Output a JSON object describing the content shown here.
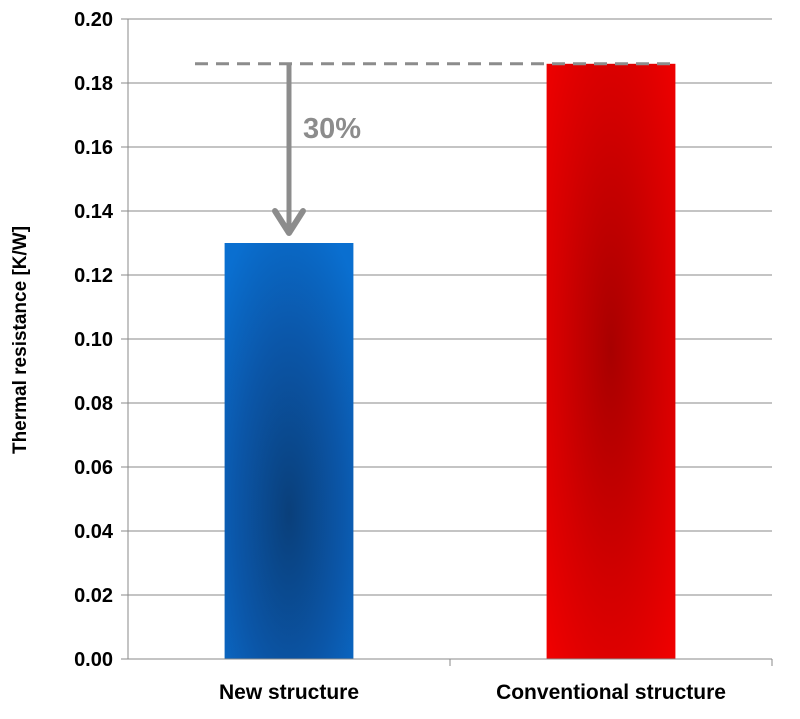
{
  "chart_data": {
    "type": "bar",
    "categories": [
      "New structure",
      "Conventional structure"
    ],
    "values": [
      0.13,
      0.186
    ],
    "title": "",
    "xlabel": "",
    "ylabel": "Thermal resistance [K/W]",
    "ylim": [
      0,
      0.2
    ],
    "yticks": [
      "0.00",
      "0.02",
      "0.04",
      "0.06",
      "0.08",
      "0.10",
      "0.12",
      "0.14",
      "0.16",
      "0.18",
      "0.20"
    ],
    "grid": true,
    "legend": "none",
    "colors": [
      "#0a64c0",
      "#e80000"
    ],
    "annotation": {
      "label": "30%",
      "reference_value": 0.186,
      "from_value": 0.186,
      "to_value": 0.13,
      "color": "#8c8c8c"
    }
  }
}
